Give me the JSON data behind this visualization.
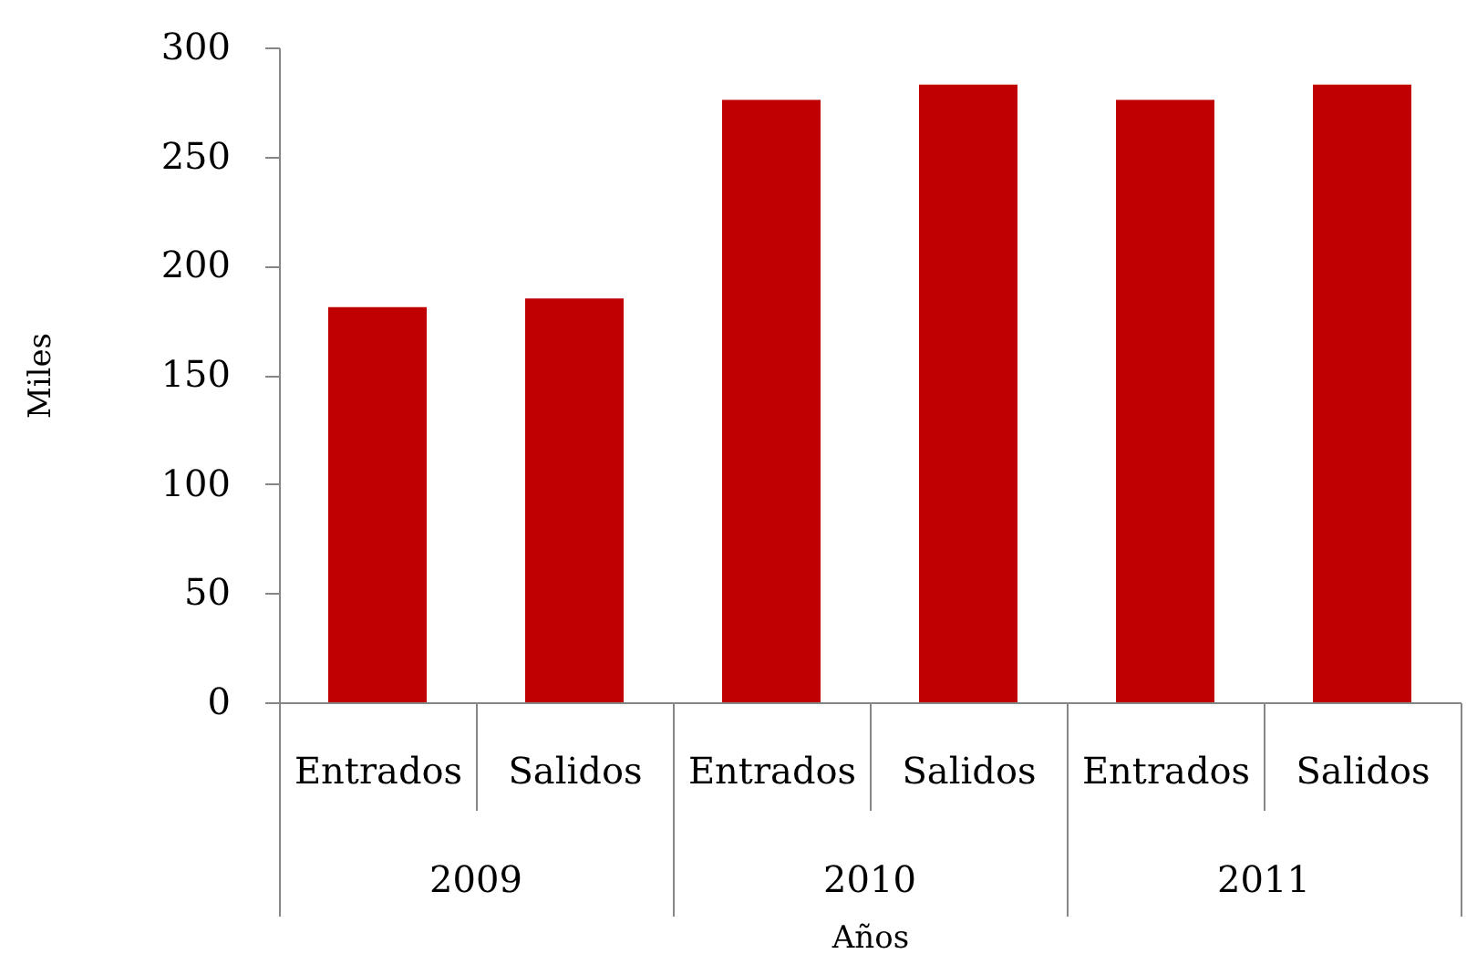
{
  "chart_data": {
    "type": "bar",
    "xlabel": "Años",
    "ylabel": "Miles",
    "categories": [
      "Entrados",
      "Salidos",
      "Entrados",
      "Salidos",
      "Entrados",
      "Salidos"
    ],
    "values": [
      181,
      185,
      276,
      283,
      276,
      283
    ],
    "color": "#c00000",
    "ylim": [
      0,
      300
    ],
    "yticks": [
      0,
      50,
      100,
      150,
      200,
      250,
      300
    ],
    "annotations": [
      "2009",
      "2010",
      "2011"
    ]
  }
}
